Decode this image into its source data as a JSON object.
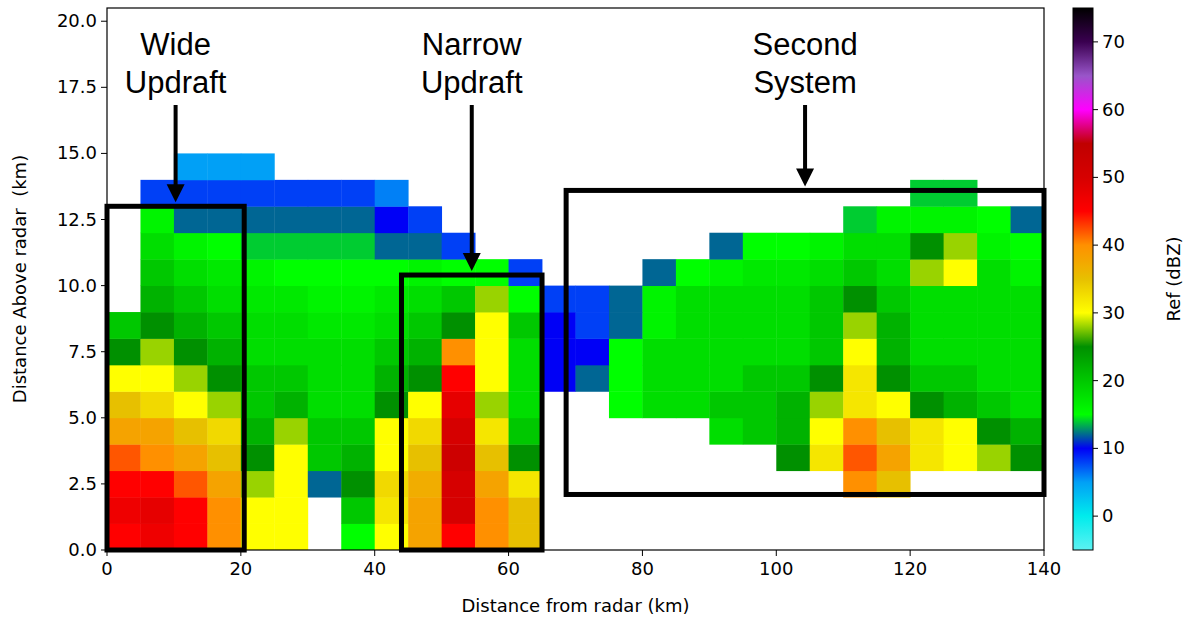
{
  "chart_data": {
    "type": "heatmap",
    "x_label": "Distance from radar (km)",
    "y_label": "Distance Above radar  (km)",
    "xlim": [
      0,
      140
    ],
    "ylim": [
      0,
      20.5
    ],
    "xticks": [
      0,
      20,
      40,
      60,
      80,
      100,
      120,
      140
    ],
    "yticks": [
      {
        "value": 0,
        "label": "0.0"
      },
      {
        "value": 2.5,
        "label": "2.5"
      },
      {
        "value": 5,
        "label": "5.0"
      },
      {
        "value": 7.5,
        "label": "7.5"
      },
      {
        "value": 10,
        "label": "10.0"
      },
      {
        "value": 12.5,
        "label": "12.5"
      },
      {
        "value": 15,
        "label": "15.0"
      },
      {
        "value": 17.5,
        "label": "17.5"
      },
      {
        "value": 20,
        "label": "20.0"
      }
    ],
    "x_edges": [
      0,
      5,
      10,
      15,
      20,
      25,
      30,
      35,
      40,
      45,
      50,
      55,
      60,
      65,
      70,
      75,
      80,
      85,
      90,
      95,
      100,
      105,
      110,
      115,
      120,
      125,
      130,
      135,
      140
    ],
    "y_edges": [
      0,
      1,
      2,
      3,
      4,
      5,
      6,
      7,
      8,
      9,
      10,
      11,
      12,
      13,
      14,
      15
    ],
    "cells": [
      [
        45,
        47,
        45,
        40,
        30,
        30,
        null,
        15,
        30,
        38,
        45,
        40,
        35,
        null,
        null,
        null,
        null,
        null,
        null,
        null,
        null,
        null,
        null,
        null,
        null,
        null,
        null,
        null
      ],
      [
        47,
        48,
        45,
        40,
        30,
        30,
        null,
        20,
        32,
        38,
        50,
        40,
        35,
        null,
        null,
        null,
        null,
        null,
        null,
        null,
        null,
        null,
        null,
        null,
        null,
        null,
        null,
        null
      ],
      [
        45,
        45,
        42,
        38,
        28,
        30,
        12,
        25,
        33,
        37,
        50,
        38,
        32,
        null,
        null,
        null,
        null,
        null,
        null,
        null,
        null,
        null,
        40,
        35,
        null,
        null,
        null,
        null
      ],
      [
        42,
        40,
        38,
        35,
        25,
        30,
        20,
        22,
        30,
        35,
        52,
        35,
        25,
        null,
        null,
        null,
        null,
        null,
        null,
        null,
        25,
        32,
        42,
        38,
        32,
        30,
        28,
        25
      ],
      [
        38,
        38,
        35,
        33,
        22,
        28,
        20,
        20,
        30,
        33,
        50,
        32,
        20,
        null,
        null,
        null,
        null,
        null,
        18,
        20,
        22,
        30,
        40,
        35,
        32,
        30,
        25,
        22
      ],
      [
        35,
        33,
        30,
        28,
        20,
        22,
        18,
        18,
        25,
        30,
        48,
        28,
        18,
        null,
        null,
        15,
        18,
        18,
        20,
        20,
        22,
        28,
        32,
        30,
        25,
        22,
        20,
        18
      ],
      [
        30,
        30,
        28,
        25,
        20,
        20,
        18,
        18,
        22,
        25,
        45,
        30,
        18,
        10,
        12,
        15,
        18,
        18,
        18,
        20,
        20,
        25,
        32,
        25,
        20,
        20,
        18,
        18
      ],
      [
        25,
        28,
        25,
        22,
        18,
        18,
        18,
        18,
        20,
        22,
        40,
        30,
        18,
        10,
        10,
        15,
        18,
        18,
        18,
        18,
        18,
        20,
        30,
        22,
        18,
        18,
        18,
        18
      ],
      [
        20,
        25,
        22,
        20,
        18,
        18,
        17,
        17,
        18,
        20,
        25,
        30,
        20,
        10,
        8,
        12,
        16,
        18,
        18,
        18,
        18,
        20,
        28,
        22,
        18,
        18,
        18,
        18
      ],
      [
        null,
        22,
        20,
        18,
        17,
        17,
        16,
        16,
        17,
        18,
        20,
        28,
        15,
        8,
        8,
        12,
        16,
        18,
        18,
        18,
        18,
        20,
        25,
        20,
        18,
        18,
        18,
        18
      ],
      [
        null,
        20,
        18,
        17,
        16,
        15,
        15,
        15,
        15,
        16,
        15,
        15,
        8,
        null,
        null,
        null,
        12,
        15,
        16,
        17,
        17,
        18,
        20,
        18,
        28,
        30,
        18,
        16
      ],
      [
        null,
        18,
        16,
        15,
        14,
        14,
        14,
        14,
        12,
        12,
        8,
        null,
        null,
        null,
        null,
        null,
        null,
        null,
        12,
        15,
        15,
        16,
        18,
        18,
        25,
        28,
        16,
        15
      ],
      [
        null,
        16,
        12,
        12,
        12,
        12,
        12,
        12,
        10,
        8,
        null,
        null,
        null,
        null,
        null,
        null,
        null,
        null,
        null,
        null,
        null,
        null,
        14,
        16,
        16,
        16,
        15,
        12
      ],
      [
        null,
        8,
        8,
        8,
        8,
        8,
        8,
        8,
        6,
        null,
        null,
        null,
        null,
        null,
        null,
        null,
        null,
        null,
        null,
        null,
        null,
        null,
        null,
        null,
        14,
        14,
        null,
        null
      ],
      [
        null,
        null,
        5,
        5,
        5,
        null,
        null,
        null,
        null,
        null,
        null,
        null,
        null,
        null,
        null,
        null,
        null,
        null,
        null,
        null,
        null,
        null,
        null,
        null,
        null,
        null,
        null,
        null
      ]
    ],
    "colorbar": {
      "label": "Ref (dBZ)",
      "range": [
        -5,
        75
      ],
      "ticks": [
        0,
        10,
        20,
        30,
        40,
        50,
        60,
        70
      ]
    },
    "annotations": [
      {
        "text": "Wide Updraft",
        "x": [
          0,
          20.5
        ],
        "y": [
          0,
          13
        ]
      },
      {
        "text": "Narrow Updraft",
        "x": [
          44,
          65
        ],
        "y": [
          0,
          10.4
        ]
      },
      {
        "text": "Second System",
        "x": [
          68.6,
          140
        ],
        "y": [
          2.1,
          13.6
        ]
      }
    ]
  }
}
